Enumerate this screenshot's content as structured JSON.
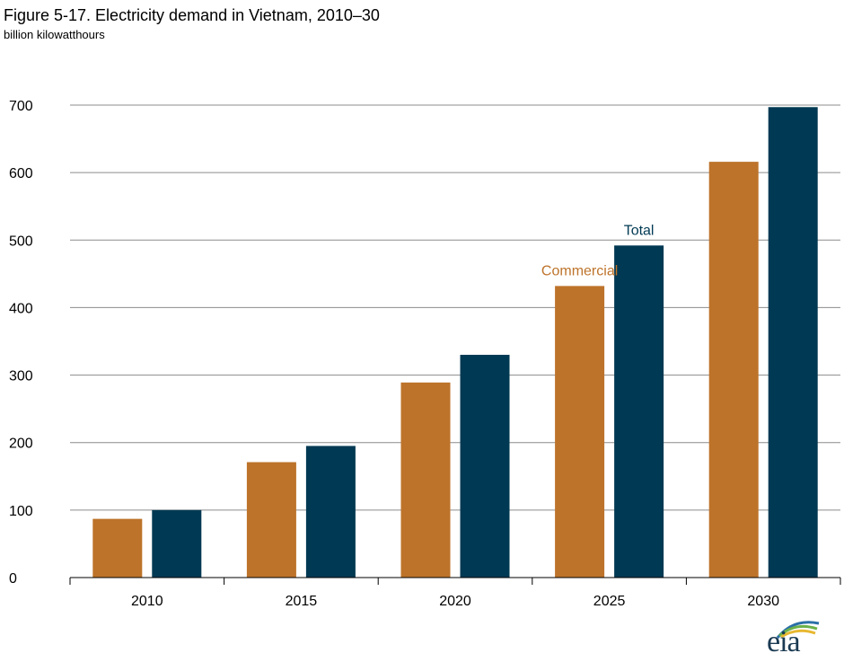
{
  "header": {
    "title": "Figure 5-17. Electricity demand in Vietnam, 2010–30",
    "subtitle": "billion kilowatthours"
  },
  "logo": {
    "text": "eia",
    "icon": "eia-logo-icon"
  },
  "colors": {
    "commercial": "#BD732A",
    "total": "#003953",
    "grid": "#8c8c8c",
    "axis": "#000000"
  },
  "chart_data": {
    "type": "bar",
    "title": "Figure 5-17. Electricity demand in Vietnam, 2010–30",
    "subtitle": "billion kilowatthours",
    "xlabel": "",
    "ylabel": "",
    "categories": [
      "2010",
      "2015",
      "2020",
      "2025",
      "2030"
    ],
    "series": [
      {
        "name": "Commercial",
        "values": [
          87,
          171,
          289,
          432,
          616
        ]
      },
      {
        "name": "Total",
        "values": [
          100,
          195,
          330,
          492,
          697
        ]
      }
    ],
    "ylim": [
      0,
      700
    ],
    "yticks": [
      0,
      100,
      200,
      300,
      400,
      500,
      600,
      700
    ],
    "grid": true,
    "legend": "series labels placed above the 2025 bars"
  }
}
